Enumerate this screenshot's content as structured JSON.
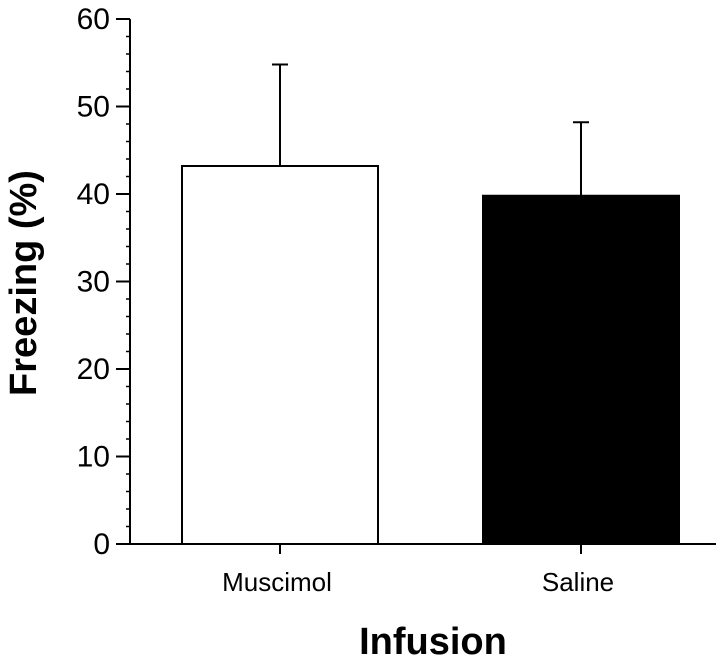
{
  "chart_data": {
    "type": "bar",
    "title": "",
    "xlabel": "Infusion",
    "ylabel": "Freezing (%)",
    "categories": [
      "Muscimol",
      "Saline"
    ],
    "values": [
      43.2,
      39.8
    ],
    "error_upper": [
      54.8,
      48.2
    ],
    "bar_colors": [
      "#ffffff",
      "#000000"
    ],
    "ylim": [
      0,
      60
    ],
    "yticks": [
      0,
      10,
      20,
      30,
      40,
      50,
      60
    ],
    "minor_tick_step": 2,
    "grid": false,
    "legend": "none"
  }
}
